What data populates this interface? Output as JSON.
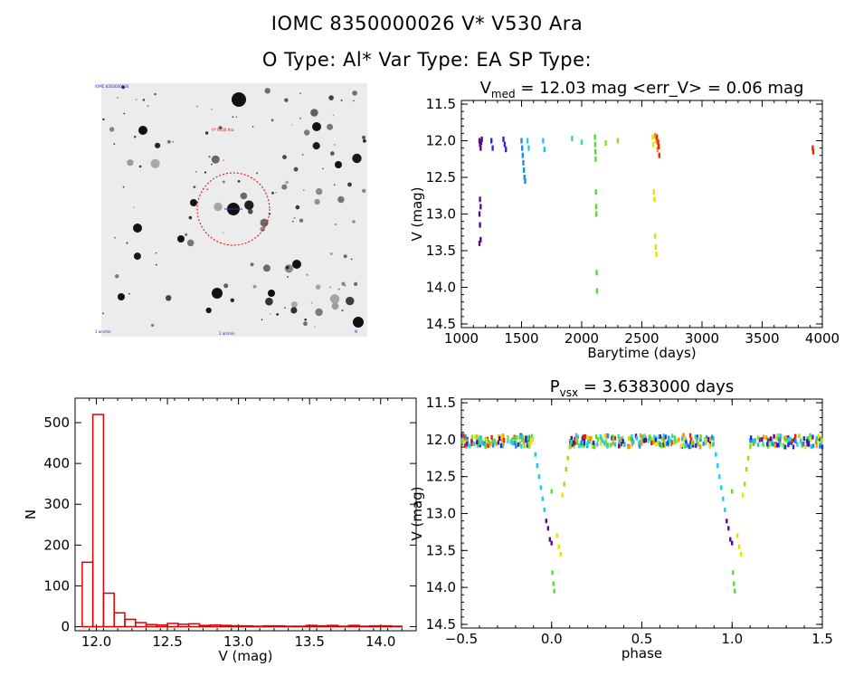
{
  "header": {
    "line1": "IOMC 8350000026    V* V530 Ara",
    "line2": "O Type: Al*  Var Type: EA  SP Type:"
  },
  "finder": {
    "label_top_left": "IOMC 8350000026",
    "label_red": "V* V530 Ara",
    "label_bottom_left": "1 arcmin",
    "label_bottom_center": "2 arcmin",
    "label_bottom_right": "N",
    "circle_color": "#dd0000"
  },
  "colors": {
    "histogram": "#dd0000",
    "timeline": [
      "#5a0a8a",
      "#2a2ad0",
      "#1a90e0",
      "#22c8e8",
      "#33d6b0",
      "#55dd33",
      "#99dd22",
      "#e8e000",
      "#ff9900",
      "#ee2200"
    ]
  },
  "chart_data": [
    {
      "type": "scatter",
      "title": "V",
      "title_sub": "med",
      "title_rest": " = 12.03 mag <err_V> = 0.06 mag",
      "xlabel": "Barytime (days)",
      "ylabel": "V (mag)",
      "xlim": [
        1000,
        4000
      ],
      "ylim": [
        14.55,
        11.45
      ],
      "xticks": [
        "1000",
        "1500",
        "2000",
        "2500",
        "3000",
        "3500",
        "4000"
      ],
      "yticks": [
        "11.5",
        "12.0",
        "12.5",
        "13.0",
        "13.5",
        "14.0",
        "14.5"
      ],
      "grid": false,
      "series": [
        {
          "color_index": 0,
          "x": [
            1150,
            1155,
            1160,
            1165,
            1170,
            1155,
            1160,
            1150,
            1155,
            1160,
            1150
          ],
          "y": [
            12.0,
            12.05,
            12.1,
            12.02,
            11.98,
            12.8,
            12.9,
            13.0,
            13.15,
            13.35,
            13.4
          ]
        },
        {
          "color_index": 1,
          "x": [
            1250,
            1260,
            1350,
            1360,
            1370
          ],
          "y": [
            12.0,
            12.1,
            11.98,
            12.05,
            12.12
          ]
        },
        {
          "color_index": 2,
          "x": [
            1500,
            1505,
            1510,
            1515,
            1520,
            1525,
            1530
          ],
          "y": [
            12.0,
            12.1,
            12.2,
            12.3,
            12.4,
            12.5,
            12.55
          ]
        },
        {
          "color_index": 3,
          "x": [
            1550,
            1560,
            1680,
            1690
          ],
          "y": [
            12.0,
            12.1,
            12.0,
            12.12
          ]
        },
        {
          "color_index": 4,
          "x": [
            1920,
            2000
          ],
          "y": [
            11.97,
            12.02
          ]
        },
        {
          "color_index": 5,
          "x": [
            2110,
            2112,
            2114,
            2116,
            2118,
            2120,
            2122,
            2124,
            2126
          ],
          "y": [
            11.95,
            12.05,
            12.15,
            12.25,
            12.7,
            12.9,
            13.0,
            13.8,
            14.05
          ]
        },
        {
          "color_index": 6,
          "x": [
            2200,
            2300
          ],
          "y": [
            12.03,
            12.0
          ]
        },
        {
          "color_index": 7,
          "x": [
            2590,
            2595,
            2600,
            2605,
            2610,
            2615,
            2620
          ],
          "y": [
            11.95,
            12.05,
            12.7,
            12.8,
            13.3,
            13.45,
            13.55
          ]
        },
        {
          "color_index": 8,
          "x": [
            2610,
            2620,
            2630
          ],
          "y": [
            11.93,
            12.0,
            12.12
          ]
        },
        {
          "color_index": 9,
          "x": [
            2625,
            2635,
            2640,
            2645,
            3920,
            3925
          ],
          "y": [
            11.95,
            12.02,
            12.08,
            12.2,
            12.1,
            12.15
          ]
        }
      ]
    },
    {
      "type": "bar",
      "title": "",
      "xlabel": "V (mag)",
      "ylabel": "N",
      "xlim": [
        11.85,
        14.25
      ],
      "ylim": [
        -10,
        560
      ],
      "xticks": [
        "12.0",
        "12.5",
        "13.0",
        "13.5",
        "14.0"
      ],
      "yticks": [
        "0",
        "100",
        "200",
        "300",
        "400",
        "500"
      ],
      "grid": false,
      "bin_width": 0.075,
      "bin_centers": [
        11.9375,
        12.0125,
        12.0875,
        12.1625,
        12.2375,
        12.3125,
        12.3875,
        12.4625,
        12.5375,
        12.6125,
        12.6875,
        12.7625,
        12.8375,
        12.9125,
        12.9875,
        13.0625,
        13.1375,
        13.2125,
        13.2875,
        13.3625,
        13.4375,
        13.5125,
        13.5875,
        13.6625,
        13.7375,
        13.8125,
        13.8875,
        13.9625,
        14.0375,
        14.1125
      ],
      "values": [
        158,
        520,
        82,
        34,
        18,
        10,
        5,
        4,
        8,
        6,
        7,
        3,
        4,
        3,
        2,
        2,
        1,
        2,
        2,
        1,
        1,
        3,
        2,
        3,
        1,
        3,
        1,
        2,
        2,
        1
      ]
    },
    {
      "type": "scatter",
      "title": "P",
      "title_sub": "vsx",
      "title_rest": " = 3.6383000 days",
      "xlabel": "phase",
      "ylabel": "V (mag)",
      "xlim": [
        -0.5,
        1.5
      ],
      "ylim": [
        14.55,
        11.45
      ],
      "xticks": [
        "−0.5",
        "0.0",
        "0.5",
        "1.0",
        "1.5"
      ],
      "yticks": [
        "11.5",
        "12.0",
        "12.5",
        "13.0",
        "13.5",
        "14.0",
        "14.5"
      ],
      "grid": false,
      "eclipse_phase": [
        0.0,
        1.0
      ],
      "series": [
        {
          "color_index": 3,
          "x": [
            -0.09,
            -0.08,
            -0.07,
            -0.06,
            -0.05,
            -0.04
          ],
          "y": [
            12.2,
            12.35,
            12.5,
            12.65,
            12.8,
            12.95
          ]
        },
        {
          "color_index": 0,
          "x": [
            -0.03,
            -0.02,
            -0.01,
            0.0
          ],
          "y": [
            13.1,
            13.2,
            13.35,
            13.4
          ]
        },
        {
          "color_index": 5,
          "x": [
            0.0,
            0.005,
            0.01,
            0.015
          ],
          "y": [
            12.7,
            13.8,
            13.95,
            14.05
          ]
        },
        {
          "color_index": 7,
          "x": [
            0.03,
            0.04,
            0.05,
            0.06
          ],
          "y": [
            13.3,
            13.45,
            13.55,
            12.75
          ]
        },
        {
          "color_index": 6,
          "x": [
            0.07,
            0.08,
            0.09,
            0.1
          ],
          "y": [
            12.6,
            12.4,
            12.25,
            12.1
          ]
        }
      ]
    }
  ]
}
